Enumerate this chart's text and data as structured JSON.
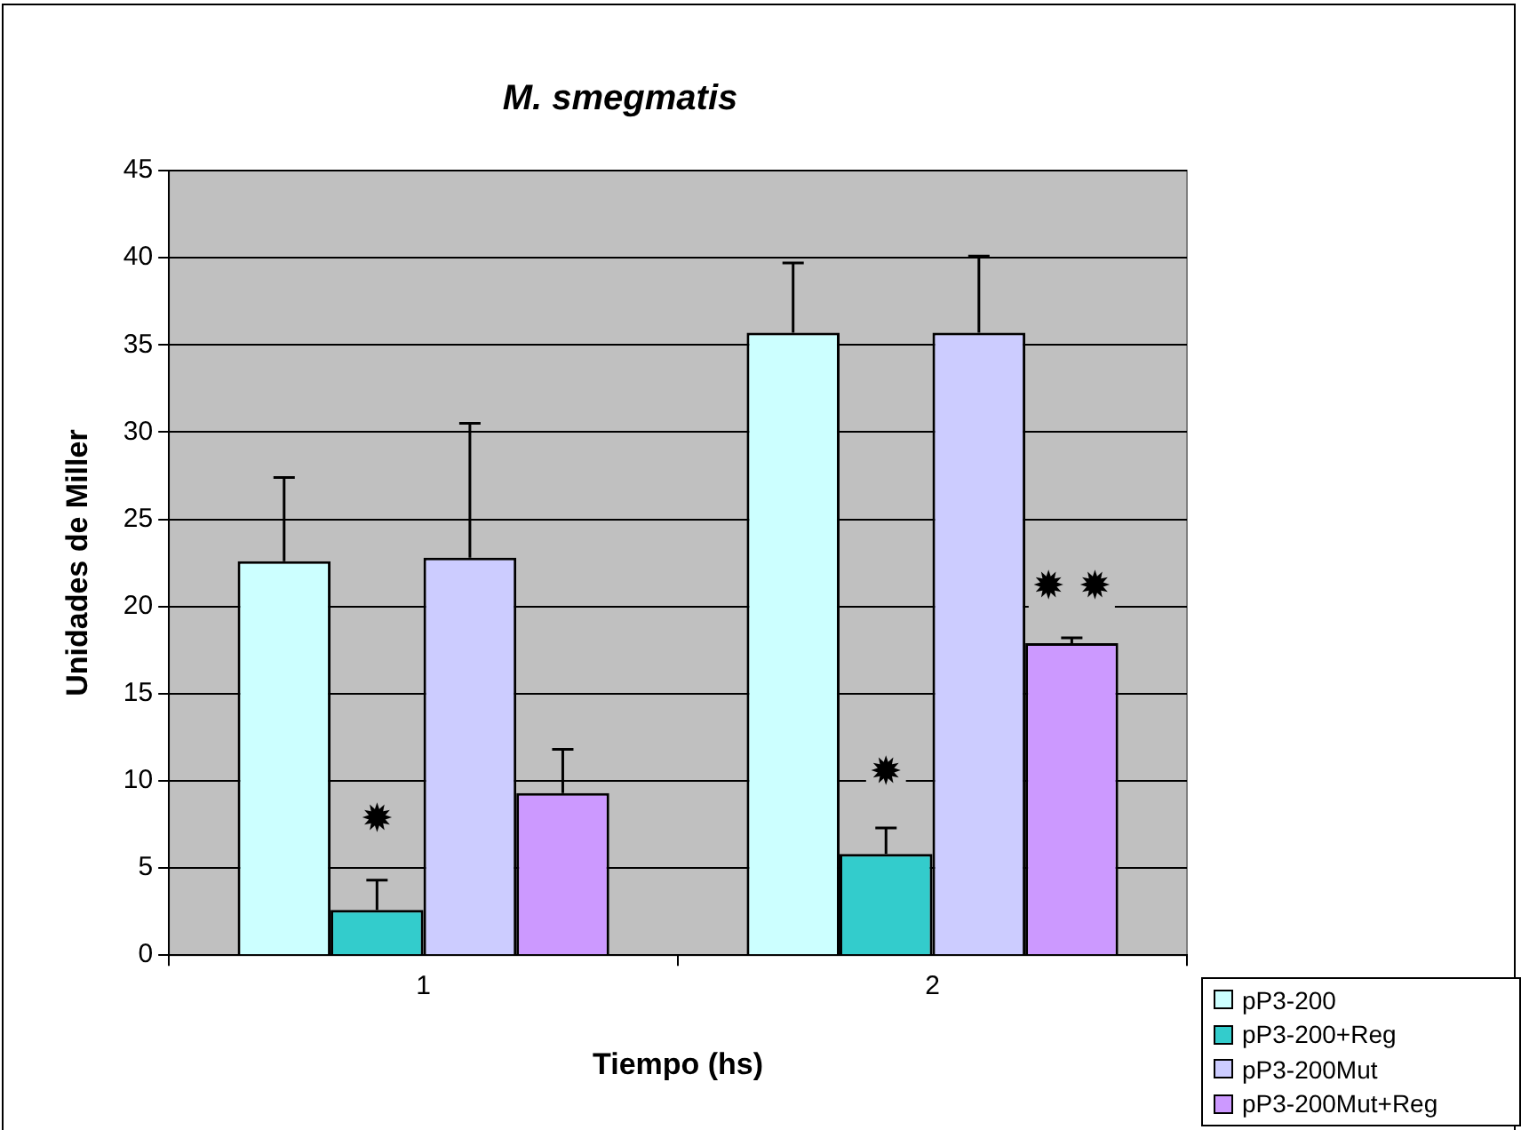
{
  "chart_data": {
    "type": "bar",
    "title": "M. smegmatis",
    "xlabel": "Tiempo (hs)",
    "ylabel": "Unidades de Miller",
    "categories": [
      "1",
      "2"
    ],
    "series": [
      {
        "name": "pP3-200",
        "color": "#ccffff",
        "values": [
          22.6,
          35.7
        ],
        "errors": [
          [
            22.6,
            27.4
          ],
          [
            35.7,
            39.7
          ]
        ]
      },
      {
        "name": "pP3-200+Reg",
        "color": "#33cccc",
        "values": [
          2.6,
          5.8
        ],
        "errors": [
          [
            2.6,
            4.3
          ],
          [
            5.8,
            7.3
          ]
        ]
      },
      {
        "name": "pP3-200Mut",
        "color": "#ccccff",
        "values": [
          22.8,
          35.7
        ],
        "errors": [
          [
            22.8,
            30.5
          ],
          [
            35.7,
            40.1
          ]
        ]
      },
      {
        "name": "pP3-200Mut+Reg",
        "color": "#cc99ff",
        "values": [
          9.3,
          17.9
        ],
        "errors": [
          [
            9.3,
            11.8
          ],
          [
            17.9,
            18.2
          ]
        ]
      }
    ],
    "annotations": [
      {
        "text": "✹",
        "x": "1",
        "y": 7.7
      },
      {
        "text": "✹",
        "x": "2",
        "y": 10.4
      },
      {
        "text": "✹ ✹",
        "x": "2",
        "y": 21
      }
    ],
    "ylim": [
      0,
      45
    ],
    "yticks": [
      0,
      5,
      10,
      15,
      20,
      25,
      30,
      35,
      40,
      45
    ],
    "grid": "y",
    "legend": "bottom right"
  }
}
